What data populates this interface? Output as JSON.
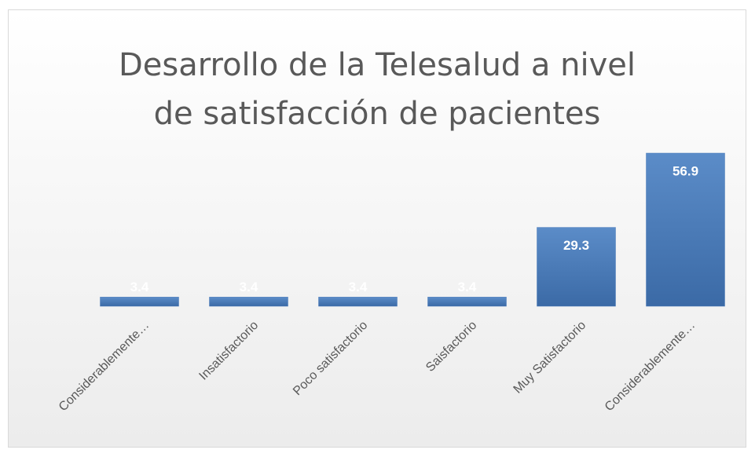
{
  "chart_data": {
    "type": "bar",
    "title": "Desarrollo de la Telesalud a nivel de satisfacción de pacientes",
    "categories": [
      "Considerablemente…",
      "Insatisfactorio",
      "Poco satisfactorio",
      "Saisfactorio",
      "Muy Satisfactorio",
      "Considerablemente…"
    ],
    "values": [
      3.4,
      3.4,
      3.4,
      3.4,
      29.3,
      56.9
    ],
    "color": "#4a7ab8"
  }
}
